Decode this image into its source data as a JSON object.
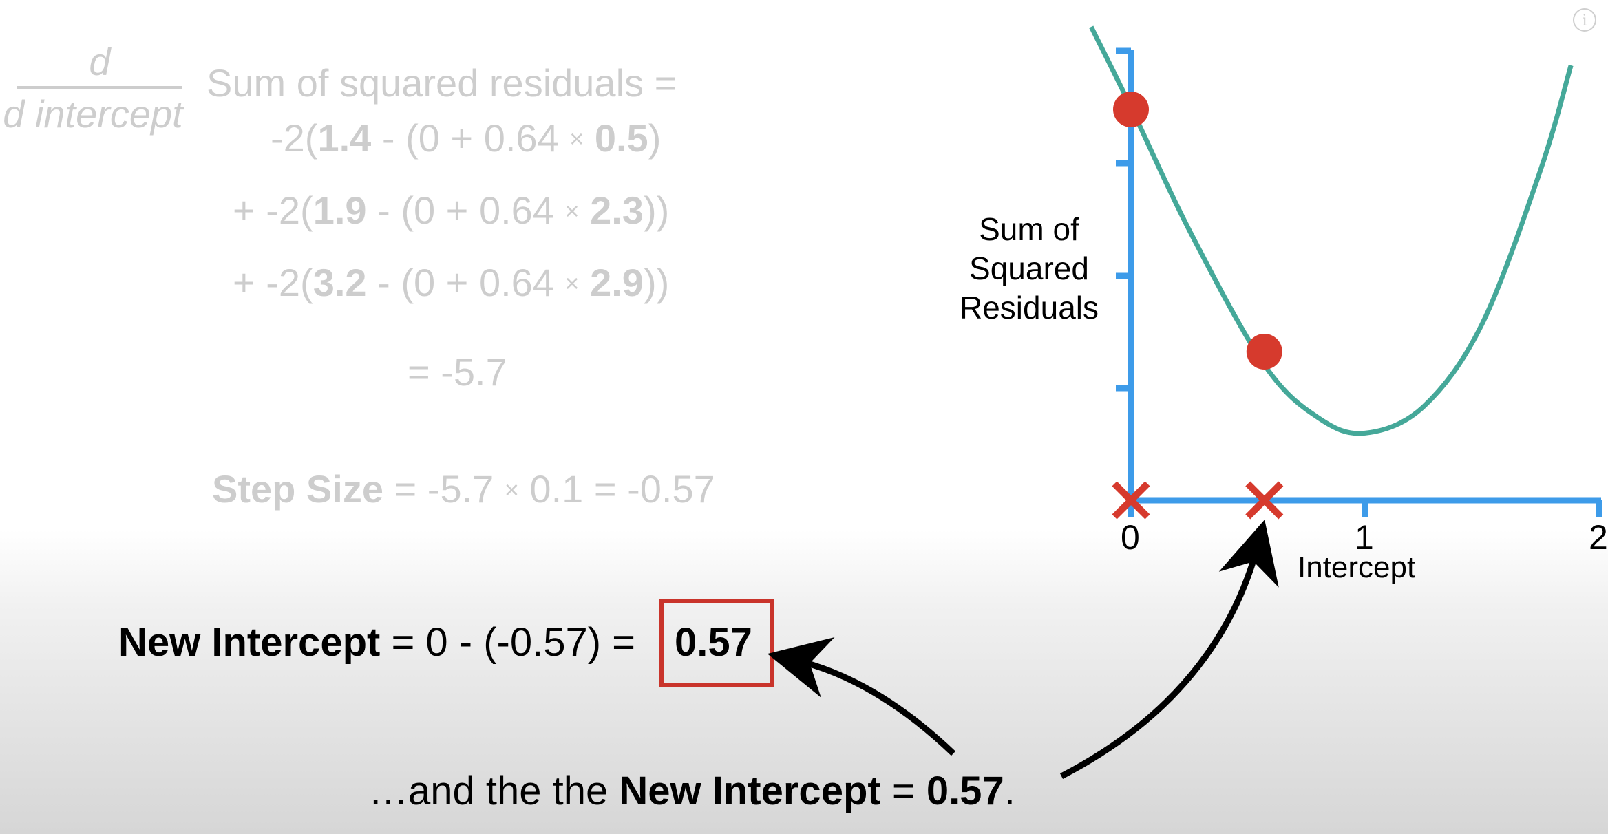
{
  "derivative": {
    "numerator": "d",
    "denominator": "d intercept",
    "lhs": "Sum of squared residuals ="
  },
  "terms": [
    {
      "prefix": "-2(",
      "obs": "1.4",
      "mid": " - (0 + 0.64 ",
      "times": "×",
      "x": "0.5",
      "suffix": ")"
    },
    {
      "prefix": "+ -2(",
      "obs": "1.9",
      "mid": " - (0 + 0.64 ",
      "times": "×",
      "x": "2.3",
      "suffix": "))"
    },
    {
      "prefix": "+ -2(",
      "obs": "3.2",
      "mid": " - (0 + 0.64 ",
      "times": "×",
      "x": "2.9",
      "suffix": "))"
    }
  ],
  "derivative_result": "= -5.7",
  "step_size": {
    "label": "Step Size",
    "expr_a": " = -5.7 ",
    "times": "×",
    "expr_b": " 0.1 = -0.57"
  },
  "new_intercept": {
    "label": "New Intercept",
    "expr": " = 0 - (-0.57) = ",
    "value": "0.57"
  },
  "caption": {
    "prefix": "…and the the ",
    "bold_label": "New Intercept",
    "mid": " = ",
    "bold_value": "0.57",
    "suffix": "."
  },
  "info_icon": "i",
  "colors": {
    "axis": "#3d9be9",
    "curve": "#45a899",
    "point": "#d63a2d",
    "marker": "#d63a2d",
    "box": "#c9342b",
    "faded_text": "#cdcdcd"
  },
  "chart_data": {
    "type": "line",
    "ylabel": "Sum of Squared Residuals",
    "xlabel": "Intercept",
    "x_tick_labels": [
      "0",
      "1",
      "2"
    ],
    "xlim": [
      0,
      2
    ],
    "series": [
      {
        "x": [
          -0.17,
          0,
          0.25,
          0.57,
          0.8,
          1.0,
          1.25,
          1.5,
          1.75,
          1.88
        ],
        "y": [
          3.85,
          3.12,
          2.0,
          0.78,
          0.3,
          0.16,
          0.4,
          1.15,
          2.55,
          3.5
        ]
      }
    ],
    "points": [
      {
        "x": 0,
        "y": 3.1
      },
      {
        "x": 0.57,
        "y": 0.9
      }
    ],
    "x_markers": [
      0,
      0.57
    ]
  }
}
